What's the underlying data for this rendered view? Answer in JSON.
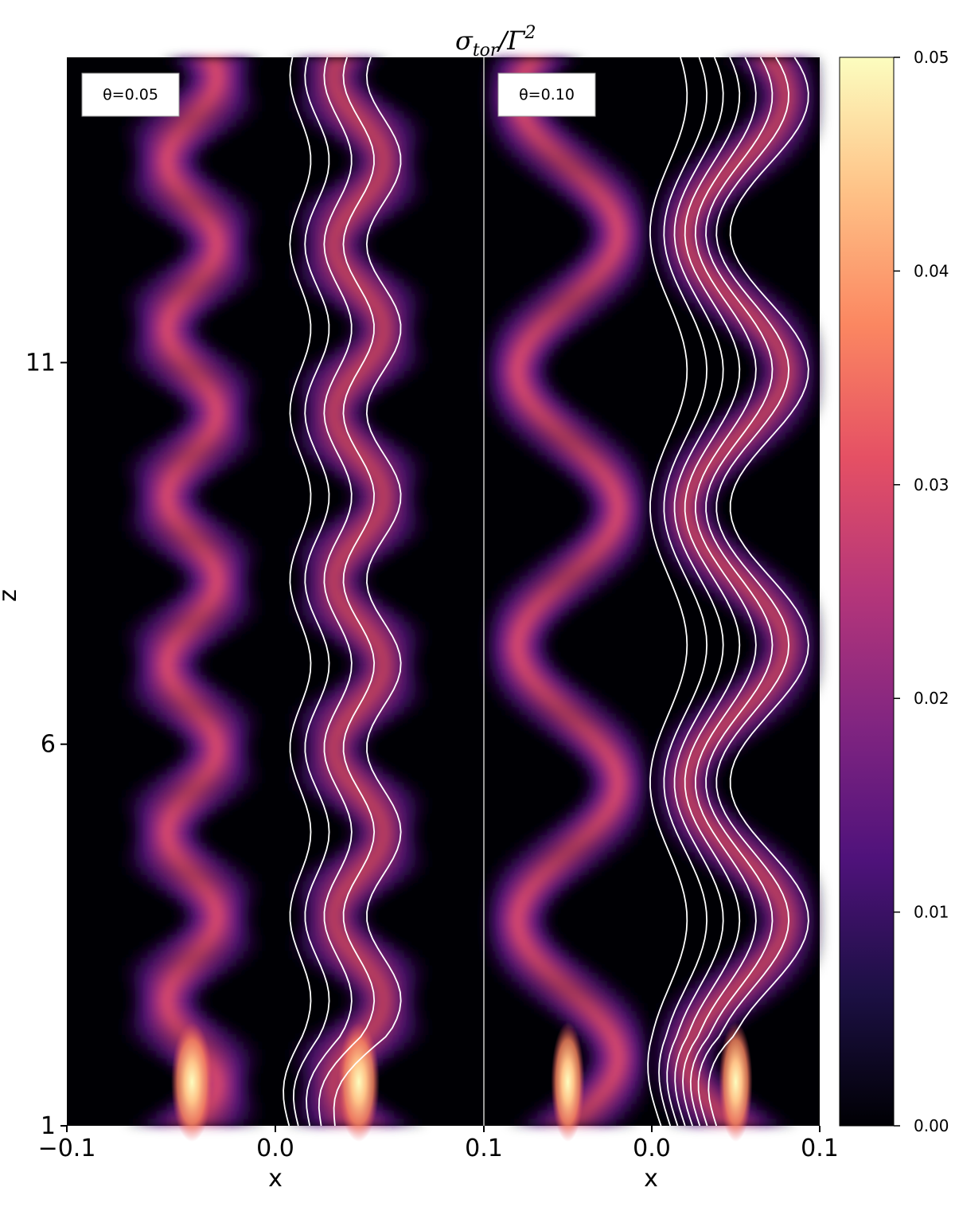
{
  "figure": {
    "title_base": "σ",
    "title_sub": "tor",
    "title_mid": "/Γ",
    "title_sup": "2",
    "ylabel": "z",
    "xlabel": "x"
  },
  "colors": {
    "background": "#000004",
    "contour": "#ffffff",
    "colormap": [
      "#000004",
      "#1c1044",
      "#4f127b",
      "#812581",
      "#b5367a",
      "#e55064",
      "#fb8761",
      "#fec287",
      "#fcfdbf"
    ]
  },
  "chart_data": [
    {
      "type": "heatmap",
      "panel": "left",
      "annotation": "θ=0.05",
      "xlim": [
        -0.1,
        0.1
      ],
      "ylim": [
        1,
        15
      ],
      "xticks": [
        -0.1,
        0.0,
        0.1
      ],
      "xtick_labels": [
        "−0.1",
        "0.0",
        "0.1"
      ],
      "yticks": [
        1,
        6,
        11
      ],
      "ytick_labels": [
        "1",
        "6",
        "11"
      ],
      "jet": {
        "center": -0.04,
        "amplitude": 0.012,
        "wavelength": 2.2,
        "half_width": 0.014,
        "peak_value": 0.05
      },
      "contours": {
        "count": 5,
        "base_x": [
          0.012,
          0.02,
          0.03,
          0.04,
          0.052
        ],
        "amplitude": 0.01,
        "wavelength": 2.2
      }
    },
    {
      "type": "heatmap",
      "panel": "right",
      "annotation": "θ=0.10",
      "xlim": [
        -0.1,
        0.1
      ],
      "ylim": [
        1,
        15
      ],
      "xticks": [
        0.0,
        0.1
      ],
      "xtick_labels": [
        "0.0",
        "0.1"
      ],
      "jet": {
        "center": -0.05,
        "amplitude": 0.03,
        "wavelength": 3.6,
        "half_width": 0.016,
        "peak_value": 0.05
      },
      "contours": {
        "count": 8,
        "base_x": [
          0.01,
          0.02,
          0.028,
          0.036,
          0.044,
          0.052,
          0.06,
          0.07
        ],
        "amplitude": 0.022,
        "wavelength": 3.6
      }
    }
  ],
  "colorbar": {
    "min": 0.0,
    "max": 0.05,
    "ticks": [
      0.0,
      0.01,
      0.02,
      0.03,
      0.04,
      0.05
    ],
    "tick_labels": [
      "0.00",
      "0.01",
      "0.02",
      "0.03",
      "0.04",
      "0.05"
    ]
  }
}
